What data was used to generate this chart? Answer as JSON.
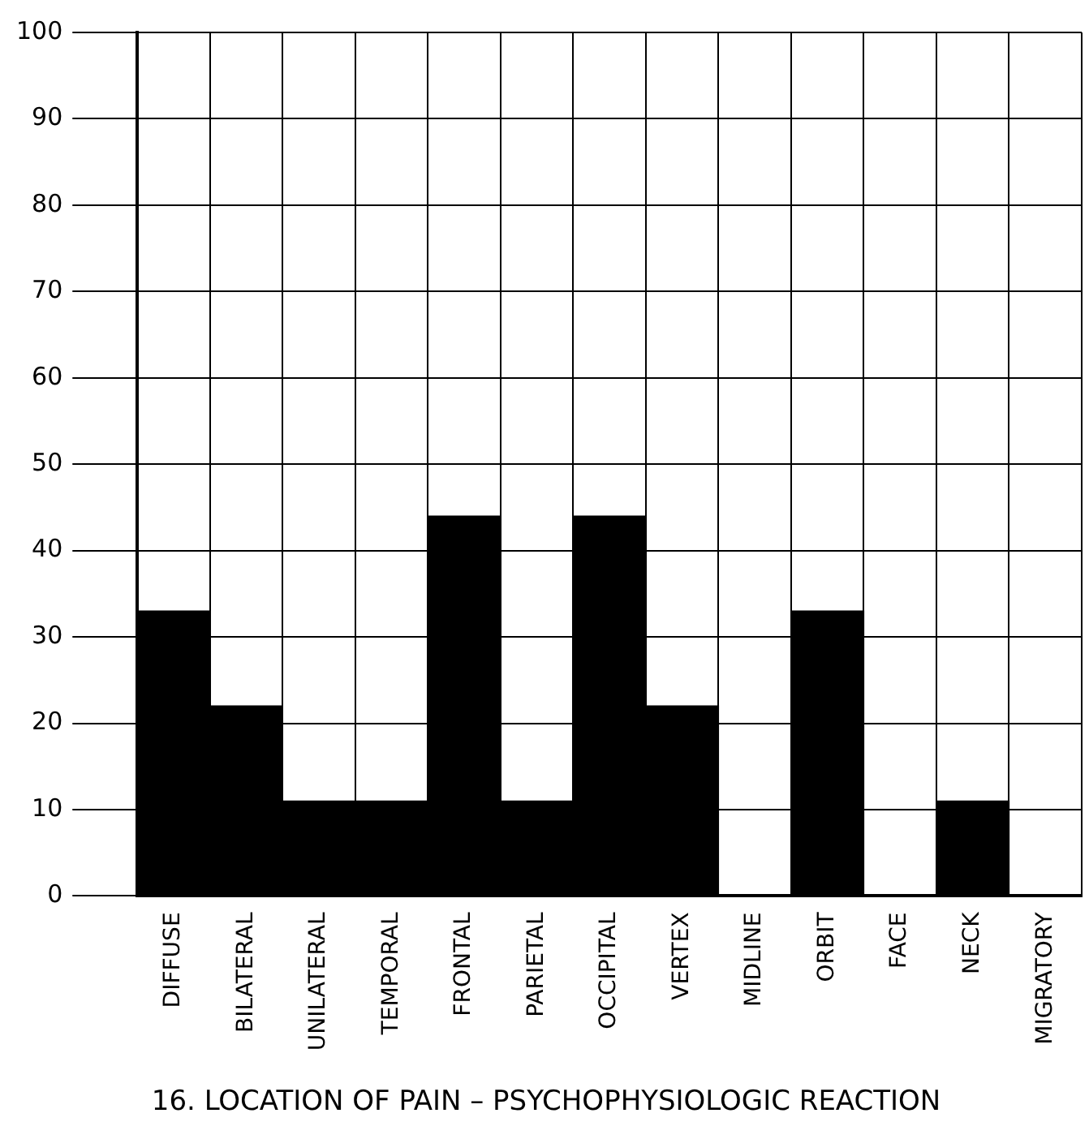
{
  "chart_data": {
    "type": "bar",
    "title": "16. LOCATION OF PAIN – PSYCHOPHYSIOLOGIC REACTION",
    "categories": [
      "DIFFUSE",
      "BILATERAL",
      "UNILATERAL",
      "TEMPORAL",
      "FRONTAL",
      "PARIETAL",
      "OCCIPITAL",
      "VERTEX",
      "MIDLINE",
      "ORBIT",
      "FACE",
      "NECK",
      "MIGRATORY"
    ],
    "values": [
      33,
      22,
      11,
      11,
      44,
      11,
      44,
      22,
      0,
      33,
      0,
      11,
      0
    ],
    "color": "#000000",
    "ylim": [
      0,
      100
    ],
    "yticks": [
      0,
      10,
      20,
      30,
      40,
      50,
      60,
      70,
      80,
      90,
      100
    ],
    "grid": true
  }
}
